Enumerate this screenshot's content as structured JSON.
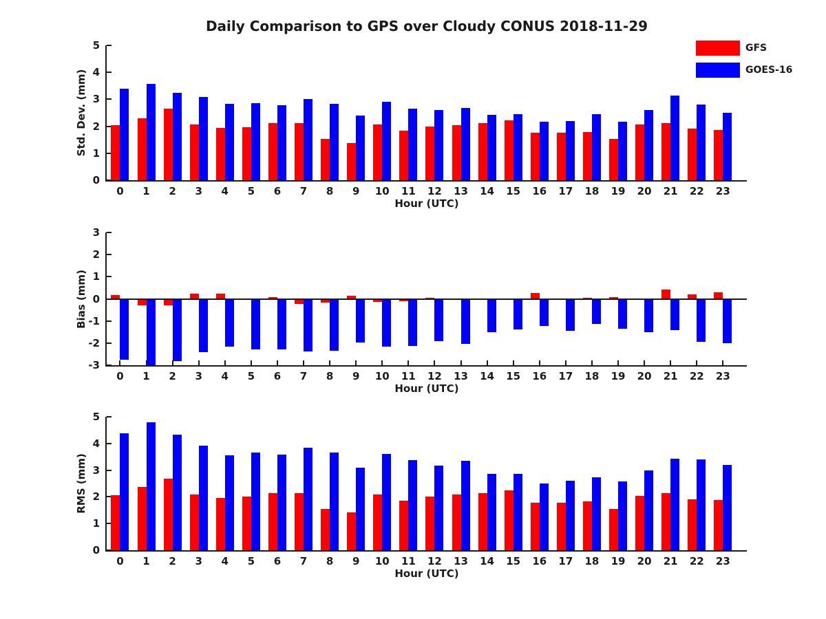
{
  "title": "Daily Comparison to GPS over Cloudy CONUS 2018-11-29",
  "legend": [
    {
      "label": "GFS",
      "color": "#ff0000"
    },
    {
      "label": "GOES-16",
      "color": "#0000ff"
    }
  ],
  "colors": {
    "gfs_red": "#ff0000",
    "goes_blue": "#0000ff",
    "axis_black": "#1a1a1a",
    "background": "#ffffff"
  },
  "chart_data": [
    {
      "type": "bar",
      "title": "",
      "ylabel": "Std. Dev. (mm)",
      "xlabel": "Hour (UTC)",
      "ylim": [
        0,
        5
      ],
      "yticks": [
        0,
        1,
        2,
        3,
        4,
        5
      ],
      "grid": false,
      "legend_position": "upper right of figure",
      "categories": [
        "0",
        "1",
        "2",
        "3",
        "4",
        "5",
        "6",
        "7",
        "8",
        "9",
        "10",
        "11",
        "12",
        "13",
        "14",
        "15",
        "16",
        "17",
        "18",
        "19",
        "20",
        "21",
        "22",
        "23"
      ],
      "series": [
        {
          "name": "GFS",
          "color": "#ff0000",
          "values": [
            2.05,
            2.3,
            2.65,
            2.06,
            1.94,
            1.96,
            2.11,
            2.12,
            1.53,
            1.39,
            2.07,
            1.84,
            2.0,
            2.05,
            2.13,
            2.23,
            1.75,
            1.77,
            1.79,
            1.53,
            2.07,
            2.12,
            1.92,
            1.86
          ]
        },
        {
          "name": "GOES-16",
          "color": "#0000ff",
          "values": [
            3.4,
            3.58,
            3.25,
            3.09,
            2.83,
            2.85,
            2.77,
            3.02,
            2.83,
            2.41,
            2.9,
            2.65,
            2.59,
            2.67,
            2.43,
            2.44,
            2.17,
            2.19,
            2.44,
            2.18,
            2.59,
            3.14,
            2.81,
            2.51
          ]
        }
      ]
    },
    {
      "type": "bar",
      "title": "",
      "ylabel": "Bias (mm)",
      "xlabel": "Hour (UTC)",
      "ylim": [
        -3,
        3
      ],
      "yticks": [
        -3,
        -2,
        -1,
        0,
        1,
        2,
        3
      ],
      "grid": false,
      "zero_line": true,
      "categories": [
        "0",
        "1",
        "2",
        "3",
        "4",
        "5",
        "6",
        "7",
        "8",
        "9",
        "10",
        "11",
        "12",
        "13",
        "14",
        "15",
        "16",
        "17",
        "18",
        "19",
        "20",
        "21",
        "22",
        "23"
      ],
      "series": [
        {
          "name": "GFS",
          "color": "#ff0000",
          "values": [
            0.18,
            -0.31,
            -0.28,
            0.22,
            0.23,
            -0.04,
            0.07,
            -0.23,
            -0.16,
            0.15,
            -0.14,
            -0.1,
            0.05,
            -0.06,
            -0.02,
            0.03,
            0.27,
            -0.05,
            0.06,
            0.09,
            0.02,
            0.42,
            0.19,
            0.31
          ]
        },
        {
          "name": "GOES-16",
          "color": "#0000ff",
          "values": [
            -2.74,
            -3.0,
            -2.82,
            -2.4,
            -2.15,
            -2.29,
            -2.3,
            -2.38,
            -2.36,
            -1.96,
            -2.17,
            -2.13,
            -1.9,
            -2.04,
            -1.51,
            -1.39,
            -1.22,
            -1.44,
            -1.15,
            -1.36,
            -1.51,
            -1.43,
            -1.95,
            -2.0
          ]
        }
      ]
    },
    {
      "type": "bar",
      "title": "",
      "ylabel": "RMS (mm)",
      "xlabel": "Hour (UTC)",
      "ylim": [
        0,
        5
      ],
      "yticks": [
        0,
        1,
        2,
        3,
        4,
        5
      ],
      "grid": false,
      "categories": [
        "0",
        "1",
        "2",
        "3",
        "4",
        "5",
        "6",
        "7",
        "8",
        "9",
        "10",
        "11",
        "12",
        "13",
        "14",
        "15",
        "16",
        "17",
        "18",
        "19",
        "20",
        "21",
        "22",
        "23"
      ],
      "series": [
        {
          "name": "GFS",
          "color": "#ff0000",
          "values": [
            2.06,
            2.36,
            2.68,
            2.08,
            1.96,
            2.0,
            2.14,
            2.14,
            1.54,
            1.41,
            2.08,
            1.86,
            2.0,
            2.08,
            2.14,
            2.24,
            1.78,
            1.78,
            1.82,
            1.55,
            2.04,
            2.14,
            1.92,
            1.88
          ]
        },
        {
          "name": "GOES-16",
          "color": "#0000ff",
          "values": [
            4.38,
            4.79,
            4.33,
            3.92,
            3.56,
            3.66,
            3.58,
            3.83,
            3.66,
            3.1,
            3.61,
            3.38,
            3.18,
            3.35,
            2.86,
            2.85,
            2.5,
            2.61,
            2.72,
            2.58,
            2.99,
            3.43,
            3.4,
            3.19
          ]
        }
      ]
    }
  ]
}
